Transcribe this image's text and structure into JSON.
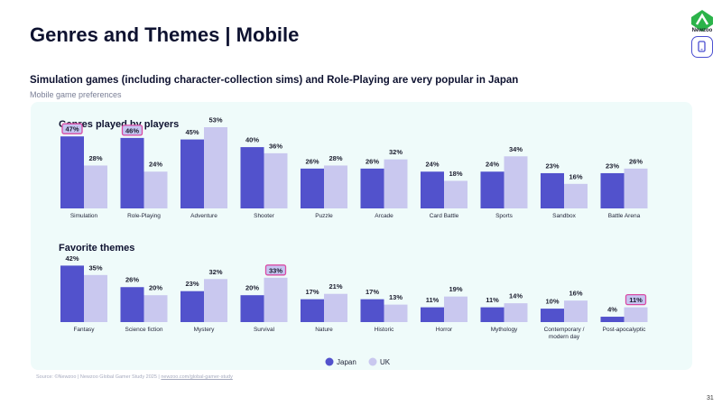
{
  "page": {
    "title": "Genres and Themes | Mobile",
    "subtitle": "Simulation games (including character-collection sims) and Role-Playing are very popular in Japan",
    "caption": "Mobile game preferences",
    "logo_text": "Newzoo",
    "source_prefix": "Source: ©Newzoo | Newzoo Global Gamer Study 2025 | ",
    "source_link": "newzoo.com/global-gamer-study",
    "page_number": "31"
  },
  "colors": {
    "japan": "#5252cc",
    "uk": "#c9c8ef",
    "highlight": "#d94ba3",
    "highlight_fill": "#c6c4f1",
    "panel": "#effbfa"
  },
  "chart_data": [
    {
      "type": "bar",
      "title": "Genres played by players",
      "categories": [
        "Simulation",
        "Role-Playing",
        "Adventure",
        "Shooter",
        "Puzzle",
        "Arcade",
        "Card Battle",
        "Sports",
        "Sandbox",
        "Battle Arena"
      ],
      "series": [
        {
          "name": "Japan",
          "values": [
            47,
            46,
            45,
            40,
            26,
            26,
            24,
            24,
            23,
            23
          ]
        },
        {
          "name": "UK",
          "values": [
            28,
            24,
            53,
            36,
            28,
            32,
            18,
            34,
            16,
            26
          ]
        }
      ],
      "value_suffix": "%",
      "highlighted": [
        {
          "series": 0,
          "index": 0
        },
        {
          "series": 0,
          "index": 1
        }
      ],
      "ylim": [
        0,
        55
      ]
    },
    {
      "type": "bar",
      "title": "Favorite themes",
      "categories": [
        "Fantasy",
        "Science fiction",
        "Mystery",
        "Survival",
        "Nature",
        "Historic",
        "Horror",
        "Mythology",
        "Contemporary /\nmodern day",
        "Post-apocalyptic"
      ],
      "series": [
        {
          "name": "Japan",
          "values": [
            42,
            26,
            23,
            20,
            17,
            17,
            11,
            11,
            10,
            4
          ]
        },
        {
          "name": "UK",
          "values": [
            35,
            20,
            32,
            33,
            21,
            13,
            19,
            14,
            16,
            11
          ]
        }
      ],
      "value_suffix": "%",
      "highlighted": [
        {
          "series": 1,
          "index": 3
        },
        {
          "series": 1,
          "index": 9
        }
      ],
      "ylim": [
        0,
        55
      ]
    }
  ],
  "legend": [
    {
      "name": "Japan",
      "color": "#5252cc"
    },
    {
      "name": "UK",
      "color": "#c9c8ef"
    }
  ]
}
